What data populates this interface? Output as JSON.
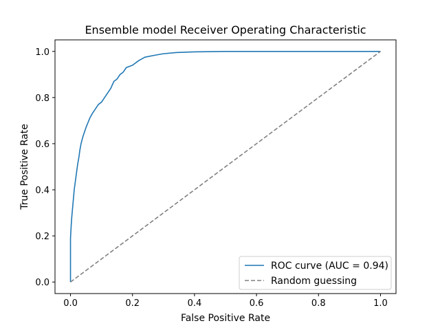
{
  "chart_data": {
    "type": "line",
    "title": "Ensemble model Receiver Operating Characteristic",
    "xlabel": "False Positive Rate",
    "ylabel": "True Positive Rate",
    "xlim": [
      -0.05,
      1.05
    ],
    "ylim": [
      -0.05,
      1.05
    ],
    "xticks": [
      0.0,
      0.2,
      0.4,
      0.6,
      0.8,
      1.0
    ],
    "yticks": [
      0.0,
      0.2,
      0.4,
      0.6,
      0.8,
      1.0
    ],
    "xtick_labels": [
      "0.0",
      "0.2",
      "0.4",
      "0.6",
      "0.8",
      "1.0"
    ],
    "ytick_labels": [
      "0.0",
      "0.2",
      "0.4",
      "0.6",
      "0.8",
      "1.0"
    ],
    "grid": false,
    "legend_position": "lower-right",
    "series": [
      {
        "name": "ROC curve (AUC = 0.94)",
        "color": "#1f77b4",
        "style": "solid",
        "x": [
          0.0,
          0.0,
          0.002,
          0.004,
          0.006,
          0.008,
          0.01,
          0.012,
          0.015,
          0.018,
          0.02,
          0.023,
          0.027,
          0.03,
          0.034,
          0.04,
          0.045,
          0.05,
          0.056,
          0.062,
          0.07,
          0.08,
          0.09,
          0.1,
          0.11,
          0.12,
          0.13,
          0.14,
          0.15,
          0.16,
          0.17,
          0.18,
          0.2,
          0.22,
          0.24,
          0.27,
          0.3,
          0.34,
          0.4,
          0.5,
          0.6,
          0.7,
          0.8,
          0.9,
          1.0
        ],
        "y": [
          0.0,
          0.19,
          0.24,
          0.28,
          0.31,
          0.34,
          0.37,
          0.4,
          0.43,
          0.46,
          0.48,
          0.51,
          0.54,
          0.57,
          0.6,
          0.63,
          0.65,
          0.67,
          0.69,
          0.71,
          0.73,
          0.75,
          0.77,
          0.78,
          0.8,
          0.82,
          0.84,
          0.87,
          0.88,
          0.9,
          0.91,
          0.93,
          0.94,
          0.96,
          0.975,
          0.983,
          0.99,
          0.995,
          0.998,
          1.0,
          1.0,
          1.0,
          1.0,
          1.0,
          1.0
        ]
      },
      {
        "name": "Random guessing",
        "color": "#808080",
        "style": "dashed",
        "x": [
          0.0,
          1.0
        ],
        "y": [
          0.0,
          1.0
        ]
      }
    ]
  }
}
